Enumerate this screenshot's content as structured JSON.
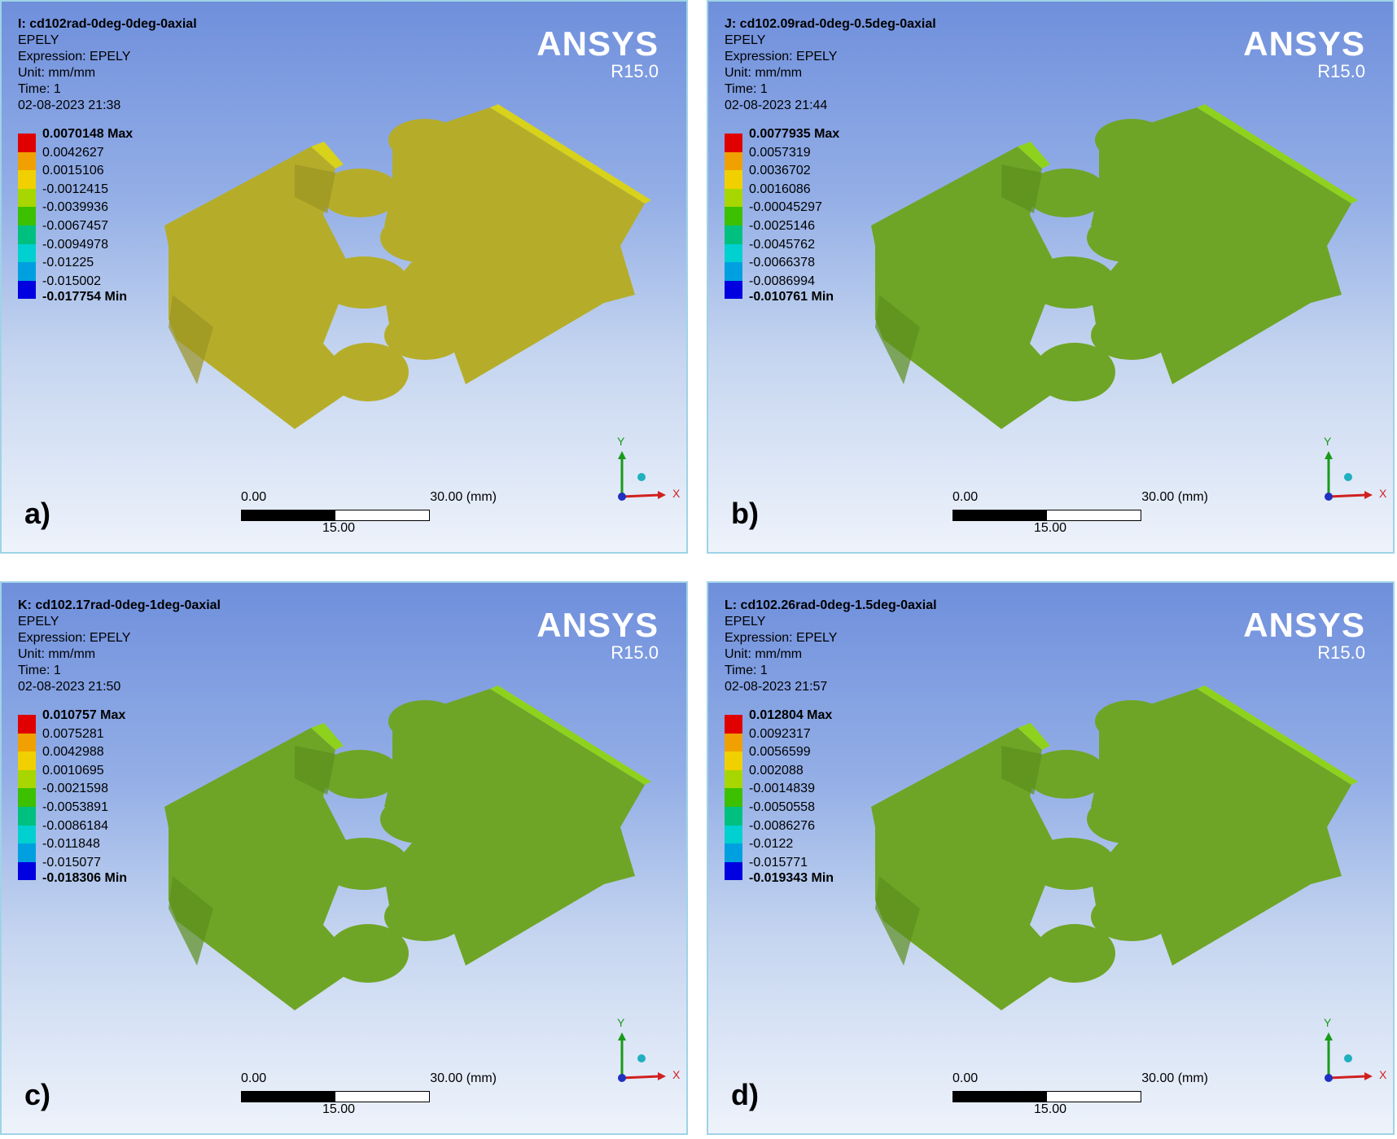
{
  "brand": {
    "name": "ANSYS",
    "version": "R15.0"
  },
  "colors": {
    "legend_bands": [
      "#e00000",
      "#f0a000",
      "#f0d000",
      "#a8d600",
      "#3cc000",
      "#00c080",
      "#00d0d0",
      "#00a0e0",
      "#0000e0"
    ],
    "gear": "#b5ad2a",
    "gear_green": "#6ea526"
  },
  "axes": {
    "x": "X",
    "y": "Y",
    "z": "Z"
  },
  "scale": {
    "start": "0.00",
    "mid": "15.00",
    "end": "30.00 (mm)"
  },
  "panels": [
    {
      "id": "a",
      "tag": "a)",
      "title": "I: cd102rad-0deg-0deg-0axial",
      "result": "EPELY",
      "expression": "Expression: EPELY",
      "unit": "Unit: mm/mm",
      "time": "Time: 1",
      "date": "02-08-2023 21:38",
      "legend": [
        "0.0070148 Max",
        "0.0042627",
        "0.0015106",
        "-0.0012415",
        "-0.0039936",
        "-0.0067457",
        "-0.0094978",
        "-0.01225",
        "-0.015002",
        "-0.017754 Min"
      ]
    },
    {
      "id": "b",
      "tag": "b)",
      "title": "J: cd102.09rad-0deg-0.5deg-0axial",
      "result": "EPELY",
      "expression": "Expression: EPELY",
      "unit": "Unit: mm/mm",
      "time": "Time: 1",
      "date": "02-08-2023 21:44",
      "legend": [
        "0.0077935 Max",
        "0.0057319",
        "0.0036702",
        "0.0016086",
        "-0.00045297",
        "-0.0025146",
        "-0.0045762",
        "-0.0066378",
        "-0.0086994",
        "-0.010761 Min"
      ]
    },
    {
      "id": "c",
      "tag": "c)",
      "title": "K: cd102.17rad-0deg-1deg-0axial",
      "result": "EPELY",
      "expression": "Expression: EPELY",
      "unit": "Unit: mm/mm",
      "time": "Time: 1",
      "date": "02-08-2023 21:50",
      "legend": [
        "0.010757 Max",
        "0.0075281",
        "0.0042988",
        "0.0010695",
        "-0.0021598",
        "-0.0053891",
        "-0.0086184",
        "-0.011848",
        "-0.015077",
        "-0.018306 Min"
      ]
    },
    {
      "id": "d",
      "tag": "d)",
      "title": "L: cd102.26rad-0deg-1.5deg-0axial",
      "result": "EPELY",
      "expression": "Expression: EPELY",
      "unit": "Unit: mm/mm",
      "time": "Time: 1",
      "date": "02-08-2023 21:57",
      "legend": [
        "0.012804 Max",
        "0.0092317",
        "0.0056599",
        "0.002088",
        "-0.0014839",
        "-0.0050558",
        "-0.0086276",
        "-0.0122",
        "-0.015771",
        "-0.019343 Min"
      ]
    }
  ]
}
